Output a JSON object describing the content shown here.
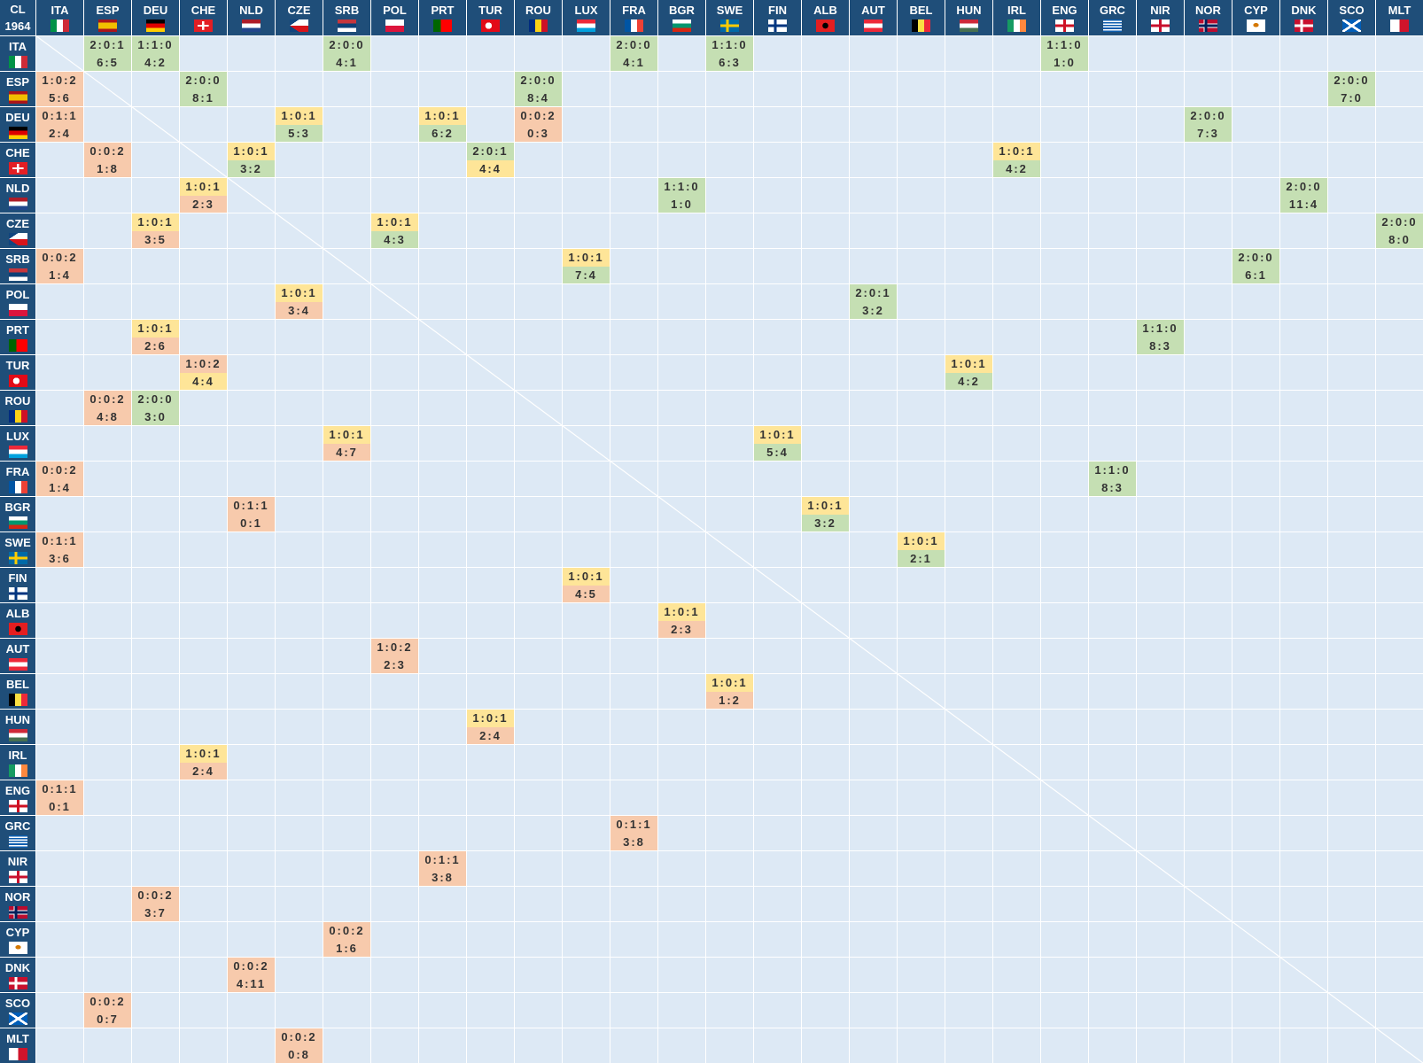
{
  "corner": {
    "label": "CL",
    "year": "1964"
  },
  "teams": [
    "ITA",
    "ESP",
    "DEU",
    "CHE",
    "NLD",
    "CZE",
    "SRB",
    "POL",
    "PRT",
    "TUR",
    "ROU",
    "LUX",
    "FRA",
    "BGR",
    "SWE",
    "FIN",
    "ALB",
    "AUT",
    "BEL",
    "HUN",
    "IRL",
    "ENG",
    "GRC",
    "NIR",
    "NOR",
    "CYP",
    "DNK",
    "SCO",
    "MLT"
  ],
  "colors": {
    "win": "#c5dfb3",
    "draw": "#fee598",
    "loss": "#f7caac",
    "header": "#1f4e79",
    "cell": "#dde9f5"
  },
  "results": {
    "ITA": {
      "ESP": [
        "2:0:1",
        "6:5"
      ],
      "DEU": [
        "1:1:0",
        "4:2"
      ],
      "SRB": [
        "2:0:0",
        "4:1"
      ],
      "FRA": [
        "2:0:0",
        "4:1"
      ],
      "SWE": [
        "1:1:0",
        "6:3"
      ],
      "ENG": [
        "1:1:0",
        "1:0"
      ]
    },
    "ESP": {
      "ITA": [
        "1:0:2",
        "5:6"
      ],
      "CHE": [
        "2:0:0",
        "8:1"
      ],
      "ROU": [
        "2:0:0",
        "8:4"
      ],
      "SCO": [
        "2:0:0",
        "7:0"
      ]
    },
    "DEU": {
      "ITA": [
        "0:1:1",
        "2:4"
      ],
      "CZE": [
        "1:0:1",
        "5:3"
      ],
      "PRT": [
        "1:0:1",
        "6:2"
      ],
      "ROU": [
        "0:0:2",
        "0:3"
      ],
      "NOR": [
        "2:0:0",
        "7:3"
      ]
    },
    "CHE": {
      "ESP": [
        "0:0:2",
        "1:8"
      ],
      "NLD": [
        "1:0:1",
        "3:2"
      ],
      "TUR": [
        "2:0:1",
        "4:4"
      ],
      "IRL": [
        "1:0:1",
        "4:2"
      ]
    },
    "NLD": {
      "CHE": [
        "1:0:1",
        "2:3"
      ],
      "BGR": [
        "1:1:0",
        "1:0"
      ],
      "DNK": [
        "2:0:0",
        "11:4"
      ]
    },
    "CZE": {
      "DEU": [
        "1:0:1",
        "3:5"
      ],
      "POL": [
        "1:0:1",
        "4:3"
      ],
      "MLT": [
        "2:0:0",
        "8:0"
      ]
    },
    "SRB": {
      "ITA": [
        "0:0:2",
        "1:4"
      ],
      "LUX": [
        "1:0:1",
        "7:4"
      ],
      "CYP": [
        "2:0:0",
        "6:1"
      ]
    },
    "POL": {
      "CZE": [
        "1:0:1",
        "3:4"
      ],
      "AUT": [
        "2:0:1",
        "3:2"
      ]
    },
    "PRT": {
      "DEU": [
        "1:0:1",
        "2:6"
      ],
      "NIR": [
        "1:1:0",
        "8:3"
      ]
    },
    "TUR": {
      "CHE": [
        "1:0:2",
        "4:4"
      ],
      "HUN": [
        "1:0:1",
        "4:2"
      ]
    },
    "ROU": {
      "ESP": [
        "0:0:2",
        "4:8"
      ],
      "DEU": [
        "2:0:0",
        "3:0"
      ]
    },
    "LUX": {
      "SRB": [
        "1:0:1",
        "4:7"
      ],
      "FIN": [
        "1:0:1",
        "5:4"
      ]
    },
    "FRA": {
      "ITA": [
        "0:0:2",
        "1:4"
      ],
      "GRC": [
        "1:1:0",
        "8:3"
      ]
    },
    "BGR": {
      "NLD": [
        "0:1:1",
        "0:1"
      ],
      "ALB": [
        "1:0:1",
        "3:2"
      ]
    },
    "SWE": {
      "ITA": [
        "0:1:1",
        "3:6"
      ],
      "BEL": [
        "1:0:1",
        "2:1"
      ]
    },
    "FIN": {
      "LUX": [
        "1:0:1",
        "4:5"
      ]
    },
    "ALB": {
      "BGR": [
        "1:0:1",
        "2:3"
      ]
    },
    "AUT": {
      "POL": [
        "1:0:2",
        "2:3"
      ]
    },
    "BEL": {
      "SWE": [
        "1:0:1",
        "1:2"
      ]
    },
    "HUN": {
      "TUR": [
        "1:0:1",
        "2:4"
      ]
    },
    "IRL": {
      "CHE": [
        "1:0:1",
        "2:4"
      ]
    },
    "ENG": {
      "ITA": [
        "0:1:1",
        "0:1"
      ]
    },
    "GRC": {
      "FRA": [
        "0:1:1",
        "3:8"
      ]
    },
    "NIR": {
      "PRT": [
        "0:1:1",
        "3:8"
      ]
    },
    "NOR": {
      "DEU": [
        "0:0:2",
        "3:7"
      ]
    },
    "CYP": {
      "SRB": [
        "0:0:2",
        "1:6"
      ]
    },
    "DNK": {
      "NLD": [
        "0:0:2",
        "4:11"
      ]
    },
    "SCO": {
      "ESP": [
        "0:0:2",
        "0:7"
      ]
    },
    "MLT": {
      "CZE": [
        "0:0:2",
        "0:8"
      ]
    }
  }
}
